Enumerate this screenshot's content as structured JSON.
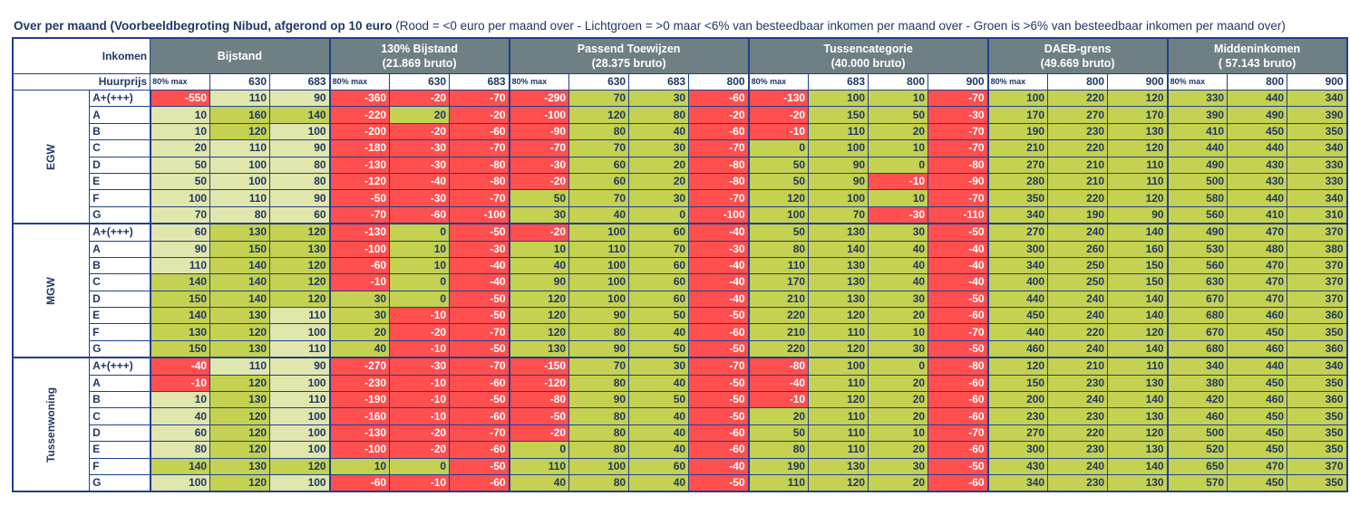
{
  "title": {
    "bold": "Over per maand (Voorbeeldbegroting Nibud, afgerond op 10 euro",
    "legend": " (Rood = <0 euro per maand over - Lichtgroen = >0 maar <6% van besteedbaar inkomen per maand over - Groen is >6% van besteedbaar inkomen per maand over)"
  },
  "header": {
    "inkomen": "Inkomen",
    "huurprijs": "Huurprijs"
  },
  "colors": {
    "red": "#ff4f4f",
    "light_green": "#e1e6ad",
    "green": "#c5d150",
    "header_bg": "#6f8084",
    "text": "#1f3864"
  },
  "column_groups": [
    {
      "title": "Bijstand",
      "subtitle": "",
      "columns": [
        "80% max",
        "630",
        "683"
      ]
    },
    {
      "title": "130% Bijstand",
      "subtitle": "(21.869 bruto)",
      "columns": [
        "80% max",
        "630",
        "683"
      ]
    },
    {
      "title": "Passend Toewijzen",
      "subtitle": "(28.375 bruto)",
      "columns": [
        "80% max",
        "630",
        "683",
        "800"
      ]
    },
    {
      "title": "Tussencategorie",
      "subtitle": "(40.000 bruto)",
      "columns": [
        "80% max",
        "683",
        "800",
        "900"
      ]
    },
    {
      "title": "DAEB-grens",
      "subtitle": "(49.669 bruto)",
      "columns": [
        "80% max",
        "800",
        "900"
      ]
    },
    {
      "title": "Middeninkomen",
      "subtitle": "( 57.143 bruto)",
      "columns": [
        "80% max",
        "800",
        "900"
      ]
    }
  ],
  "groups": [
    {
      "label": "EGW",
      "rows": [
        {
          "label": "A+(+++)",
          "colors": "rllrrrrggrrggrgggggg",
          "values": [
            -550,
            110,
            90,
            -360,
            -20,
            -70,
            -290,
            70,
            30,
            -60,
            -130,
            100,
            10,
            -70,
            100,
            220,
            120,
            330,
            440,
            340
          ]
        },
        {
          "label": "A",
          "colors": "lggrgrrggrrggrgggggg",
          "values": [
            10,
            160,
            140,
            -220,
            20,
            -20,
            -100,
            120,
            80,
            -20,
            -20,
            150,
            50,
            -30,
            170,
            270,
            170,
            390,
            490,
            390
          ]
        },
        {
          "label": "B",
          "colors": "lglrrrrggrrggrgggggg",
          "values": [
            10,
            120,
            100,
            -200,
            -20,
            -60,
            -90,
            80,
            40,
            -60,
            -10,
            110,
            20,
            -70,
            190,
            230,
            130,
            410,
            450,
            350
          ]
        },
        {
          "label": "C",
          "colors": "lllrrrrggrgggrgggggg",
          "values": [
            20,
            110,
            90,
            -180,
            -30,
            -70,
            -70,
            70,
            30,
            -70,
            0,
            100,
            10,
            -70,
            210,
            220,
            120,
            440,
            440,
            340
          ]
        },
        {
          "label": "D",
          "colors": "lllrrrrggrgggrgggggg",
          "values": [
            50,
            100,
            80,
            -130,
            -30,
            -80,
            -30,
            60,
            20,
            -80,
            50,
            90,
            0,
            -80,
            270,
            210,
            110,
            490,
            430,
            330
          ]
        },
        {
          "label": "E",
          "colors": "lllrrrrggrggrrgggggg",
          "values": [
            50,
            100,
            80,
            -120,
            -40,
            -80,
            -20,
            60,
            20,
            -80,
            50,
            90,
            -10,
            -90,
            280,
            210,
            110,
            500,
            430,
            330
          ]
        },
        {
          "label": "F",
          "colors": "lllrrrgggrgggrgggggg",
          "values": [
            100,
            110,
            90,
            -50,
            -30,
            -70,
            50,
            70,
            30,
            -70,
            120,
            100,
            10,
            -70,
            350,
            220,
            120,
            580,
            440,
            340
          ]
        },
        {
          "label": "G",
          "colors": "lllrrrgggrggrrgggggg",
          "values": [
            70,
            80,
            60,
            -70,
            -60,
            -100,
            30,
            40,
            0,
            -100,
            100,
            70,
            -30,
            -110,
            340,
            190,
            90,
            560,
            410,
            310
          ]
        }
      ]
    },
    {
      "label": "MGW",
      "rows": [
        {
          "label": "A+(+++)",
          "colors": "lggrgrrggrgggrgggggg",
          "values": [
            60,
            130,
            120,
            -130,
            0,
            -50,
            -20,
            100,
            60,
            -40,
            50,
            130,
            30,
            -50,
            270,
            240,
            140,
            490,
            470,
            370
          ]
        },
        {
          "label": "A",
          "colors": "lggrgrgggrgggrgggggg",
          "values": [
            90,
            150,
            130,
            -100,
            10,
            -30,
            10,
            110,
            70,
            -30,
            80,
            140,
            40,
            -40,
            300,
            260,
            160,
            530,
            480,
            380
          ]
        },
        {
          "label": "B",
          "colors": "lggrgrgggrgggrgggggg",
          "values": [
            110,
            140,
            120,
            -60,
            10,
            -40,
            40,
            100,
            60,
            -40,
            110,
            130,
            40,
            -40,
            340,
            250,
            150,
            560,
            470,
            370
          ]
        },
        {
          "label": "C",
          "colors": "gggrgrgggrgggrgggggg",
          "values": [
            140,
            140,
            120,
            -10,
            0,
            -40,
            90,
            100,
            60,
            -40,
            170,
            130,
            40,
            -40,
            400,
            250,
            150,
            630,
            470,
            370
          ]
        },
        {
          "label": "D",
          "colors": "gggggrgggrgggrgggggg",
          "values": [
            150,
            140,
            120,
            30,
            0,
            -50,
            120,
            100,
            60,
            -40,
            210,
            130,
            30,
            -50,
            440,
            240,
            140,
            670,
            470,
            370
          ]
        },
        {
          "label": "E",
          "colors": "gglgrrgggrgggrgggggg",
          "values": [
            140,
            130,
            110,
            30,
            -10,
            -50,
            120,
            90,
            50,
            -50,
            220,
            120,
            20,
            -60,
            450,
            240,
            140,
            680,
            460,
            360
          ]
        },
        {
          "label": "F",
          "colors": "gglgrrgggrgggrgggggg",
          "values": [
            130,
            120,
            100,
            20,
            -20,
            -70,
            120,
            80,
            40,
            -60,
            210,
            110,
            10,
            -70,
            440,
            220,
            120,
            670,
            450,
            350
          ]
        },
        {
          "label": "G",
          "colors": "gglgrrgggrgggrgggggg",
          "values": [
            150,
            130,
            110,
            40,
            -10,
            -50,
            130,
            90,
            50,
            -50,
            220,
            120,
            30,
            -50,
            460,
            240,
            140,
            680,
            460,
            360
          ]
        }
      ]
    },
    {
      "label": "Tussenwoning",
      "rows": [
        {
          "label": "A+(+++)",
          "colors": "rllrrrrggrrggrgggggg",
          "values": [
            -40,
            110,
            90,
            -270,
            -30,
            -70,
            -150,
            70,
            30,
            -70,
            -80,
            100,
            0,
            -80,
            120,
            210,
            110,
            340,
            440,
            340
          ]
        },
        {
          "label": "A",
          "colors": "rglrrrrggrrggrgggggg",
          "values": [
            -10,
            120,
            100,
            -230,
            -10,
            -60,
            -120,
            80,
            40,
            -50,
            -40,
            110,
            20,
            -60,
            150,
            230,
            130,
            380,
            450,
            350
          ]
        },
        {
          "label": "B",
          "colors": "lglrrrrggrrggrgggggg",
          "values": [
            10,
            130,
            110,
            -190,
            -10,
            -50,
            -80,
            90,
            50,
            -50,
            -10,
            120,
            20,
            -60,
            200,
            240,
            140,
            420,
            460,
            360
          ]
        },
        {
          "label": "C",
          "colors": "lglrrrrggrgggrgggggg",
          "values": [
            40,
            120,
            100,
            -160,
            -10,
            -60,
            -50,
            80,
            40,
            -50,
            20,
            110,
            20,
            -60,
            230,
            230,
            130,
            460,
            450,
            350
          ]
        },
        {
          "label": "D",
          "colors": "lglrrrrggrgggrgggggg",
          "values": [
            60,
            120,
            100,
            -130,
            -20,
            -70,
            -20,
            80,
            40,
            -60,
            50,
            110,
            10,
            -70,
            270,
            220,
            120,
            500,
            450,
            350
          ]
        },
        {
          "label": "E",
          "colors": "lglrrrgggrgggrgggggg",
          "values": [
            80,
            120,
            100,
            -100,
            -20,
            -60,
            0,
            80,
            40,
            -60,
            80,
            110,
            20,
            -60,
            300,
            230,
            130,
            520,
            450,
            350
          ]
        },
        {
          "label": "F",
          "colors": "gggggrgggrgggrgggggg",
          "values": [
            140,
            130,
            120,
            10,
            0,
            -50,
            110,
            100,
            60,
            -40,
            190,
            130,
            30,
            -50,
            430,
            240,
            140,
            650,
            470,
            370
          ]
        },
        {
          "label": "G",
          "colors": "lglrrrgggrgggrgggggg",
          "values": [
            100,
            120,
            100,
            -60,
            -10,
            -60,
            40,
            80,
            40,
            -50,
            110,
            120,
            20,
            -60,
            340,
            230,
            130,
            570,
            450,
            350
          ]
        }
      ]
    }
  ]
}
